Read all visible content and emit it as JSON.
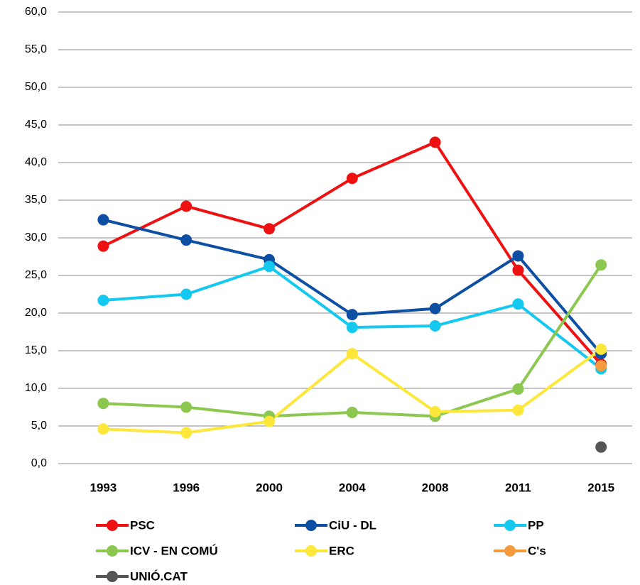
{
  "chart_data": {
    "type": "line",
    "categories": [
      "1993",
      "1996",
      "2000",
      "2004",
      "2008",
      "2011",
      "2015"
    ],
    "series": [
      {
        "name": "PSC",
        "color": "#ee1111",
        "values": [
          28.9,
          34.2,
          31.2,
          37.9,
          42.7,
          25.7,
          13.2
        ]
      },
      {
        "name": "CiU - DL",
        "color": "#0d4fa3",
        "values": [
          32.4,
          29.7,
          27.1,
          19.8,
          20.6,
          27.6,
          14.6
        ]
      },
      {
        "name": "PP",
        "color": "#14c8f0",
        "values": [
          21.7,
          22.5,
          26.2,
          18.1,
          18.3,
          21.2,
          12.6
        ]
      },
      {
        "name": "ICV - EN COMÚ",
        "color": "#8cc850",
        "values": [
          8.0,
          7.5,
          6.3,
          6.8,
          6.3,
          9.9,
          26.4
        ]
      },
      {
        "name": "ERC",
        "color": "#fde73a",
        "values": [
          4.6,
          4.1,
          5.6,
          14.6,
          6.9,
          7.1,
          15.2
        ]
      },
      {
        "name": "C's",
        "color": "#f39a3c",
        "values": [
          null,
          null,
          null,
          null,
          null,
          null,
          13.0
        ]
      },
      {
        "name": "UNIÓ.CAT",
        "color": "#555555",
        "values": [
          null,
          null,
          null,
          null,
          null,
          null,
          2.2
        ]
      }
    ],
    "ylim": [
      0,
      60
    ],
    "yticks": [
      {
        "value": 0,
        "label": "0,0"
      },
      {
        "value": 5,
        "label": "5,0"
      },
      {
        "value": 10,
        "label": "10,0"
      },
      {
        "value": 15,
        "label": "15,0"
      },
      {
        "value": 20,
        "label": "20,0"
      },
      {
        "value": 25,
        "label": "25,0"
      },
      {
        "value": 30,
        "label": "30,0"
      },
      {
        "value": 35,
        "label": "35,0"
      },
      {
        "value": 40,
        "label": "40,0"
      },
      {
        "value": 45,
        "label": "45,0"
      },
      {
        "value": 50,
        "label": "50,0"
      },
      {
        "value": 55,
        "label": "55,0"
      },
      {
        "value": 60,
        "label": "60,0"
      }
    ],
    "grid": true,
    "legend": "bottom"
  }
}
